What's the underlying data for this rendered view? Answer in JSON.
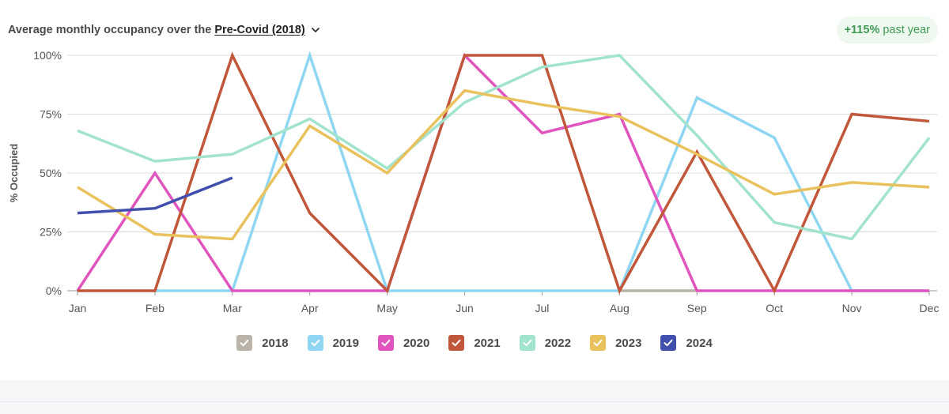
{
  "header": {
    "title": "Average monthly occupancy over the",
    "period": "Pre-Covid (2018)"
  },
  "badge": {
    "change": "+115%",
    "label": "past year",
    "color": "#3f9a55"
  },
  "chart_data": {
    "type": "line",
    "title": "Average monthly occupancy over the Pre-Covid (2018)",
    "xlabel": "",
    "ylabel": "% Occupied",
    "ylim": [
      0,
      100
    ],
    "yticks": [
      0,
      25,
      50,
      75,
      100
    ],
    "ytick_labels": [
      "0%",
      "25%",
      "50%",
      "75%",
      "100%"
    ],
    "categories": [
      "Jan",
      "Feb",
      "Mar",
      "Apr",
      "May",
      "Jun",
      "Jul",
      "Aug",
      "Sep",
      "Oct",
      "Nov",
      "Dec"
    ],
    "grid": true,
    "legend": "bottom",
    "series": [
      {
        "name": "2018",
        "color": "#b9b3a8",
        "values": [
          null,
          null,
          null,
          null,
          null,
          null,
          null,
          0,
          0,
          null,
          null,
          null
        ]
      },
      {
        "name": "2019",
        "color": "#8fd6f2",
        "values": [
          null,
          0,
          0,
          100,
          0,
          0,
          0,
          0,
          82,
          65,
          0,
          0
        ]
      },
      {
        "name": "2020",
        "color": "#e055bd",
        "values": [
          0,
          50,
          0,
          0,
          0,
          100,
          67,
          75,
          0,
          0,
          0,
          0
        ]
      },
      {
        "name": "2021",
        "color": "#c1573a",
        "values": [
          0,
          0,
          100,
          33,
          0,
          100,
          100,
          0,
          59,
          0,
          75,
          72
        ]
      },
      {
        "name": "2022",
        "color": "#a2e3cd",
        "values": [
          68,
          55,
          58,
          73,
          52,
          80,
          95,
          100,
          66,
          29,
          22,
          65
        ]
      },
      {
        "name": "2023",
        "color": "#e9c25e",
        "values": [
          44,
          24,
          22,
          70,
          50,
          85,
          79,
          74,
          58,
          41,
          46,
          44
        ]
      },
      {
        "name": "2024",
        "color": "#4250ad",
        "values": [
          33,
          35,
          48,
          null,
          null,
          null,
          null,
          null,
          null,
          null,
          null,
          null
        ]
      }
    ]
  }
}
